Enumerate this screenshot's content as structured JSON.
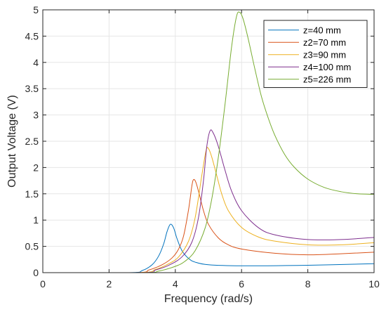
{
  "chart_data": {
    "type": "line",
    "title": "",
    "xlabel": "Frequency (rad/s)",
    "ylabel": "Output Voltage (V)",
    "xlim": [
      0,
      10
    ],
    "ylim": [
      0,
      5
    ],
    "xticks": [
      0,
      2,
      4,
      6,
      8,
      10
    ],
    "xtick_labels": [
      "0",
      "2",
      "4",
      "6",
      "8",
      "10"
    ],
    "yticks": [
      0,
      0.5,
      1,
      1.5,
      2,
      2.5,
      3,
      3.5,
      4,
      4.5,
      5
    ],
    "ytick_labels": [
      "0",
      "0.5",
      "1",
      "1.5",
      "2",
      "2.5",
      "3",
      "3.5",
      "4",
      "4.5",
      "5"
    ],
    "grid": true,
    "legend_position": "top-right",
    "series": [
      {
        "name": "z=40 mm",
        "color": "#0072BD",
        "x": [
          0,
          2.6,
          3.0,
          3.3,
          3.5,
          3.65,
          3.75,
          3.85,
          3.95,
          4.05,
          4.2,
          4.4,
          4.6,
          5.0,
          6.0,
          8.0,
          10.0
        ],
        "y": [
          0,
          0.0,
          0.04,
          0.15,
          0.32,
          0.55,
          0.78,
          0.92,
          0.85,
          0.65,
          0.42,
          0.27,
          0.2,
          0.15,
          0.13,
          0.14,
          0.17
        ]
      },
      {
        "name": "z2=70 mm",
        "color": "#D95319",
        "x": [
          0,
          2.8,
          3.2,
          3.6,
          3.9,
          4.1,
          4.25,
          4.4,
          4.5,
          4.55,
          4.62,
          4.72,
          4.85,
          5.0,
          5.3,
          5.6,
          6.0,
          7.0,
          8.0,
          9.0,
          10.0
        ],
        "y": [
          0,
          0.0,
          0.05,
          0.15,
          0.28,
          0.45,
          0.7,
          1.2,
          1.65,
          1.77,
          1.72,
          1.5,
          1.18,
          0.92,
          0.66,
          0.53,
          0.45,
          0.37,
          0.34,
          0.36,
          0.39
        ]
      },
      {
        "name": "z3=90 mm",
        "color": "#EDB120",
        "x": [
          0,
          2.9,
          3.4,
          3.8,
          4.1,
          4.4,
          4.6,
          4.8,
          4.93,
          5.0,
          5.1,
          5.25,
          5.4,
          5.6,
          6.0,
          6.5,
          7.0,
          8.0,
          9.0,
          10.0
        ],
        "y": [
          0,
          0.0,
          0.06,
          0.17,
          0.3,
          0.6,
          1.05,
          1.85,
          2.33,
          2.36,
          2.2,
          1.85,
          1.5,
          1.18,
          0.86,
          0.68,
          0.6,
          0.53,
          0.53,
          0.57
        ]
      },
      {
        "name": "z4=100 mm",
        "color": "#7E2F8E",
        "x": [
          0,
          3.0,
          3.4,
          3.8,
          4.2,
          4.5,
          4.7,
          4.85,
          4.95,
          5.05,
          5.15,
          5.3,
          5.5,
          5.7,
          6.0,
          6.5,
          7.0,
          8.0,
          9.0,
          10.0
        ],
        "y": [
          0,
          0.0,
          0.05,
          0.14,
          0.3,
          0.58,
          1.05,
          1.75,
          2.4,
          2.7,
          2.65,
          2.4,
          1.95,
          1.55,
          1.18,
          0.86,
          0.72,
          0.63,
          0.63,
          0.67
        ]
      },
      {
        "name": "z5=226 mm",
        "color": "#77AC30",
        "x": [
          0,
          3.0,
          3.5,
          4.0,
          4.3,
          4.6,
          4.9,
          5.1,
          5.3,
          5.5,
          5.7,
          5.85,
          5.95,
          6.05,
          6.2,
          6.4,
          6.6,
          6.8,
          7.0,
          7.3,
          7.6,
          8.0,
          8.5,
          9.0,
          9.5,
          10.0
        ],
        "y": [
          0,
          0.0,
          0.03,
          0.12,
          0.22,
          0.42,
          0.85,
          1.4,
          2.2,
          3.2,
          4.3,
          4.88,
          4.95,
          4.82,
          4.45,
          3.88,
          3.35,
          2.95,
          2.62,
          2.25,
          2.0,
          1.78,
          1.62,
          1.54,
          1.5,
          1.49
        ]
      }
    ]
  }
}
